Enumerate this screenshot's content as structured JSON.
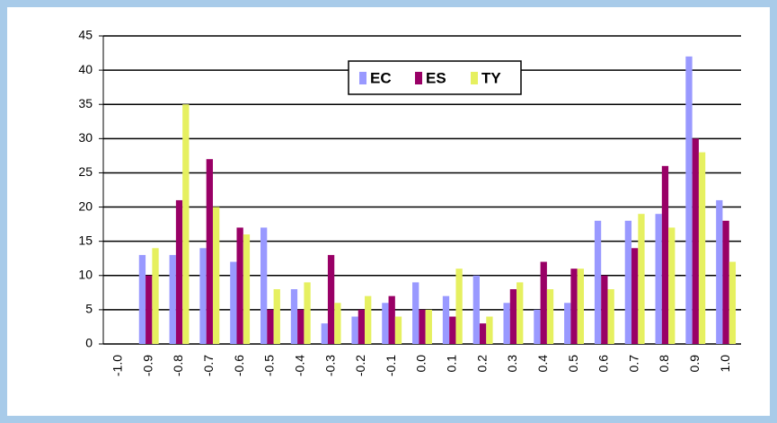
{
  "chart_data": {
    "type": "bar",
    "categories": [
      "-1.0",
      "-0.9",
      "-0.8",
      "-0.7",
      "-0.6",
      "-0.5",
      "-0.4",
      "-0.3",
      "-0.2",
      "-0.1",
      "0.0",
      "0.1",
      "0.2",
      "0.3",
      "0.4",
      "0.5",
      "0.6",
      "0.7",
      "0.8",
      "0.9",
      "1.0"
    ],
    "series": [
      {
        "name": "EC",
        "color": "#9999ff",
        "values": [
          0,
          13,
          13,
          14,
          12,
          17,
          8,
          3,
          4,
          6,
          9,
          7,
          10,
          6,
          5,
          6,
          18,
          18,
          19,
          42,
          21
        ]
      },
      {
        "name": "ES",
        "color": "#990066",
        "values": [
          0,
          10,
          21,
          27,
          17,
          5,
          5,
          13,
          5,
          7,
          5,
          4,
          3,
          8,
          12,
          11,
          10,
          14,
          26,
          30,
          18
        ]
      },
      {
        "name": "TY",
        "color": "#e6f060",
        "values": [
          0,
          14,
          35,
          20,
          16,
          8,
          9,
          6,
          7,
          4,
          5,
          11,
          4,
          9,
          8,
          11,
          8,
          19,
          17,
          28,
          12
        ]
      }
    ],
    "ylim": [
      0,
      45
    ],
    "yticks": [
      0,
      5,
      10,
      15,
      20,
      25,
      30,
      35,
      40,
      45
    ],
    "grid": true
  }
}
